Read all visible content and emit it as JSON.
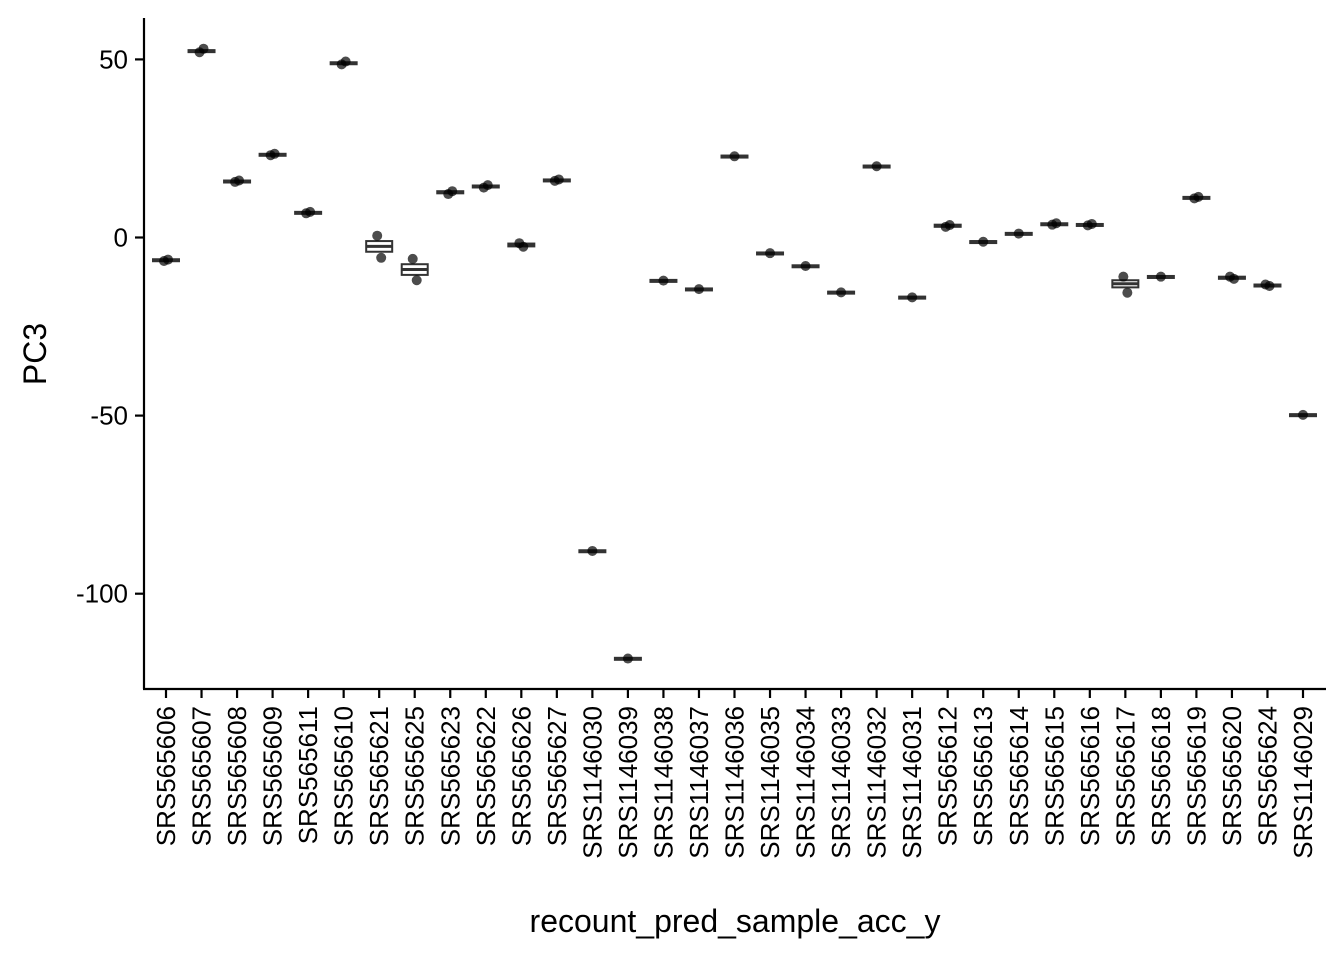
{
  "chart_data": {
    "type": "boxplot",
    "xlabel": "recount_pred_sample_acc_y",
    "ylabel": "PC3",
    "ylim": [
      -126,
      62
    ],
    "yticks": [
      50,
      0,
      -50,
      -100
    ],
    "ytick_labels": [
      "50",
      "0",
      "-50",
      "-100"
    ],
    "grid": false,
    "legend": "none",
    "categories": [
      "SRS565606",
      "SRS565607",
      "SRS565608",
      "SRS565609",
      "SRS565611",
      "SRS565610",
      "SRS565621",
      "SRS565625",
      "SRS565623",
      "SRS565622",
      "SRS565626",
      "SRS565627",
      "SRS1146030",
      "SRS1146039",
      "SRS1146038",
      "SRS1146037",
      "SRS1146036",
      "SRS1146035",
      "SRS1146034",
      "SRS1146033",
      "SRS1146032",
      "SRS1146031",
      "SRS565612",
      "SRS565613",
      "SRS565614",
      "SRS565615",
      "SRS565616",
      "SRS565617",
      "SRS565618",
      "SRS565619",
      "SRS565620",
      "SRS565624",
      "SRS1146029"
    ],
    "boxes": [
      {
        "q1": -6.5,
        "median": -6.3,
        "q3": -6.1,
        "points": [
          -6.6,
          -6.2
        ]
      },
      {
        "q1": 52.2,
        "median": 52.4,
        "q3": 52.6,
        "points": [
          52.0,
          53.0
        ]
      },
      {
        "q1": 15.6,
        "median": 15.8,
        "q3": 16.0,
        "points": [
          15.6,
          16.0
        ]
      },
      {
        "q1": 23.1,
        "median": 23.3,
        "q3": 23.5,
        "points": [
          23.1,
          23.5
        ]
      },
      {
        "q1": 6.8,
        "median": 7.0,
        "q3": 7.2,
        "points": [
          6.8,
          7.2
        ]
      },
      {
        "q1": 48.8,
        "median": 49.0,
        "q3": 49.2,
        "points": [
          48.6,
          49.4
        ]
      },
      {
        "q1": -4.0,
        "median": -2.5,
        "q3": -1.0,
        "points": [
          0.5,
          -5.7
        ]
      },
      {
        "q1": -10.5,
        "median": -9.0,
        "q3": -7.5,
        "points": [
          -6.0,
          -12.0
        ]
      },
      {
        "q1": 12.4,
        "median": 12.7,
        "q3": 13.0,
        "points": [
          12.2,
          13.0
        ]
      },
      {
        "q1": 14.2,
        "median": 14.4,
        "q3": 14.6,
        "points": [
          14.0,
          14.7
        ]
      },
      {
        "q1": -2.5,
        "median": -2.1,
        "q3": -1.7,
        "points": [
          -1.6,
          -2.6
        ]
      },
      {
        "q1": 15.9,
        "median": 16.1,
        "q3": 16.3,
        "points": [
          15.9,
          16.3
        ]
      },
      {
        "q1": -88.2,
        "median": -88.0,
        "q3": -87.8,
        "points": [
          -88.0
        ]
      },
      {
        "q1": -118.4,
        "median": -118.2,
        "q3": -118.0,
        "points": [
          -118.2
        ]
      },
      {
        "q1": -12.3,
        "median": -12.1,
        "q3": -11.9,
        "points": [
          -12.1
        ]
      },
      {
        "q1": -14.7,
        "median": -14.5,
        "q3": -14.3,
        "points": [
          -14.5
        ]
      },
      {
        "q1": 22.6,
        "median": 22.8,
        "q3": 23.0,
        "points": [
          22.8
        ]
      },
      {
        "q1": -4.6,
        "median": -4.4,
        "q3": -4.2,
        "points": [
          -4.4
        ]
      },
      {
        "q1": -8.2,
        "median": -8.0,
        "q3": -7.8,
        "points": [
          -8.0
        ]
      },
      {
        "q1": -15.6,
        "median": -15.4,
        "q3": -15.2,
        "points": [
          -15.4
        ]
      },
      {
        "q1": 19.8,
        "median": 20.0,
        "q3": 20.2,
        "points": [
          20.0
        ]
      },
      {
        "q1": -17.0,
        "median": -16.8,
        "q3": -16.6,
        "points": [
          -16.8
        ]
      },
      {
        "q1": 3.0,
        "median": 3.3,
        "q3": 3.6,
        "points": [
          3.0,
          3.5
        ]
      },
      {
        "q1": -1.4,
        "median": -1.2,
        "q3": -1.0,
        "points": [
          -1.2
        ]
      },
      {
        "q1": 0.9,
        "median": 1.1,
        "q3": 1.3,
        "points": [
          1.1
        ]
      },
      {
        "q1": 3.6,
        "median": 3.8,
        "q3": 4.0,
        "points": [
          3.6,
          4.0
        ]
      },
      {
        "q1": 3.4,
        "median": 3.6,
        "q3": 3.8,
        "points": [
          3.4,
          3.8
        ]
      },
      {
        "q1": -14.0,
        "median": -13.0,
        "q3": -12.0,
        "points": [
          -11.0,
          -15.5
        ]
      },
      {
        "q1": -11.2,
        "median": -11.0,
        "q3": -10.8,
        "points": [
          -11.0
        ]
      },
      {
        "q1": 11.0,
        "median": 11.2,
        "q3": 11.4,
        "points": [
          11.0,
          11.4
        ]
      },
      {
        "q1": -11.6,
        "median": -11.3,
        "q3": -11.0,
        "points": [
          -11.0,
          -11.6
        ]
      },
      {
        "q1": -13.6,
        "median": -13.4,
        "q3": -13.2,
        "points": [
          -13.2,
          -13.6
        ]
      },
      {
        "q1": -50.0,
        "median": -49.8,
        "q3": -49.6,
        "points": [
          -49.8
        ]
      }
    ]
  }
}
